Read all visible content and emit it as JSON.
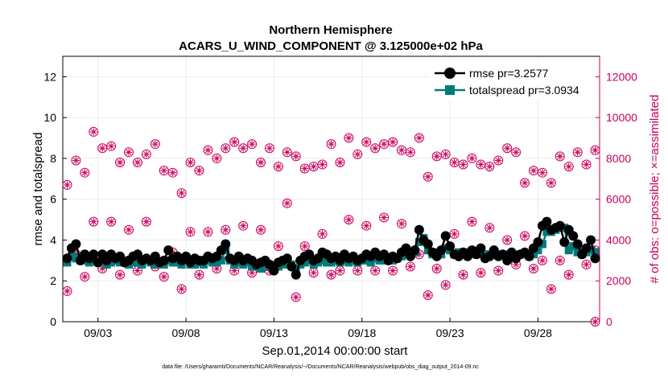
{
  "chart_data": {
    "type": "line",
    "title_line1": "Northern Hemisphere",
    "title_line2": "ACARS_U_WIND_COMPONENT @ 3.125000e+02 hPa",
    "xlabel": "Sep.01,2014 00:00:00 start",
    "ylabel_left": "rmse and totalspread",
    "ylabel_right": "# of obs: o=possible; ×=assimilated",
    "footnote": "data file: /Users/gharamti/Documents/NCAR/Reanalysis/~/Documents/NCAR/Reanalysis/webpub/obs_diag_output_2014-09.nc",
    "xlim": [
      1.0,
      31.5
    ],
    "ylim_left": [
      0,
      13
    ],
    "ylim_right": [
      0,
      13000
    ],
    "yticks_left": [
      0,
      2,
      4,
      6,
      8,
      10,
      12
    ],
    "yticks_right": [
      0,
      2000,
      4000,
      6000,
      8000,
      10000,
      12000
    ],
    "xticks": [
      {
        "day": 3,
        "label": "09/03"
      },
      {
        "day": 8,
        "label": "09/08"
      },
      {
        "day": 13,
        "label": "09/13"
      },
      {
        "day": 18,
        "label": "09/18"
      },
      {
        "day": 23,
        "label": "09/23"
      },
      {
        "day": 28,
        "label": "09/28"
      }
    ],
    "grid": true,
    "legend_position": "top-right",
    "series": [
      {
        "name": "rmse pr=3.2577",
        "color": "#000000",
        "marker": "circle",
        "x": [
          1.25,
          1.5,
          1.75,
          2.0,
          2.25,
          2.5,
          2.75,
          3.0,
          3.25,
          3.5,
          3.75,
          4.0,
          4.25,
          4.5,
          4.75,
          5.0,
          5.25,
          5.5,
          5.75,
          6.0,
          6.25,
          6.5,
          6.75,
          7.0,
          7.25,
          7.5,
          7.75,
          8.0,
          8.25,
          8.5,
          8.75,
          9.0,
          9.25,
          9.5,
          9.75,
          10.0,
          10.25,
          10.5,
          10.75,
          11.0,
          11.25,
          11.5,
          11.75,
          12.0,
          12.25,
          12.5,
          12.75,
          13.0,
          13.25,
          13.5,
          13.75,
          14.0,
          14.25,
          14.5,
          14.75,
          15.0,
          15.25,
          15.5,
          15.75,
          16.0,
          16.25,
          16.5,
          16.75,
          17.0,
          17.25,
          17.5,
          17.75,
          18.0,
          18.25,
          18.5,
          18.75,
          19.0,
          19.25,
          19.5,
          19.75,
          20.0,
          20.25,
          20.5,
          20.75,
          21.0,
          21.25,
          21.5,
          21.75,
          22.0,
          22.25,
          22.5,
          22.75,
          23.0,
          23.25,
          23.5,
          23.75,
          24.0,
          24.25,
          24.5,
          24.75,
          25.0,
          25.25,
          25.5,
          25.75,
          26.0,
          26.25,
          26.5,
          26.75,
          27.0,
          27.25,
          27.5,
          27.75,
          28.0,
          28.25,
          28.5,
          28.75,
          29.0,
          29.25,
          29.5,
          29.75,
          30.0,
          30.25,
          30.5,
          30.75,
          31.0,
          31.25
        ],
        "values": [
          3.1,
          3.6,
          3.8,
          3.0,
          3.3,
          3.1,
          3.3,
          2.9,
          3.3,
          3.0,
          3.3,
          3.1,
          3.2,
          2.9,
          3.0,
          3.2,
          3.3,
          3.0,
          3.1,
          3.0,
          3.2,
          2.9,
          3.0,
          3.5,
          3.1,
          3.2,
          3.0,
          3.2,
          2.9,
          3.1,
          3.0,
          3.0,
          3.2,
          3.1,
          3.2,
          3.5,
          3.8,
          3.1,
          3.0,
          3.2,
          3.0,
          3.1,
          3.0,
          2.8,
          2.9,
          3.0,
          2.8,
          2.5,
          2.9,
          3.0,
          3.1,
          2.7,
          2.3,
          3.0,
          3.2,
          3.3,
          3.0,
          3.1,
          3.4,
          3.3,
          3.1,
          3.2,
          3.0,
          3.3,
          3.1,
          3.2,
          3.0,
          3.1,
          3.3,
          3.2,
          3.4,
          3.2,
          3.3,
          3.0,
          3.2,
          3.1,
          3.4,
          3.6,
          3.2,
          3.5,
          4.5,
          4.0,
          3.8,
          3.4,
          3.2,
          3.5,
          4.2,
          3.7,
          3.3,
          3.2,
          3.4,
          3.2,
          3.5,
          3.3,
          3.6,
          3.1,
          3.2,
          3.5,
          3.2,
          3.3,
          3.0,
          3.4,
          3.1,
          3.3,
          3.4,
          3.2,
          3.6,
          3.9,
          4.7,
          4.9,
          4.5,
          4.6,
          4.7,
          3.9,
          4.5,
          4.2,
          3.8,
          3.3,
          3.6,
          4.0,
          3.1
        ],
        "dot_count": 121
      },
      {
        "name": "totalspread pr=3.0934",
        "color": "#007b7b",
        "marker": "square",
        "x": [
          1.25,
          1.5,
          1.75,
          2.0,
          2.25,
          2.5,
          2.75,
          3.0,
          3.25,
          3.5,
          3.75,
          4.0,
          4.25,
          4.5,
          4.75,
          5.0,
          5.25,
          5.5,
          5.75,
          6.0,
          6.25,
          6.5,
          6.75,
          7.0,
          7.25,
          7.5,
          7.75,
          8.0,
          8.25,
          8.5,
          8.75,
          9.0,
          9.25,
          9.5,
          9.75,
          10.0,
          10.25,
          10.5,
          10.75,
          11.0,
          11.25,
          11.5,
          11.75,
          12.0,
          12.25,
          12.5,
          12.75,
          13.0,
          13.25,
          13.5,
          13.75,
          14.0,
          14.25,
          14.5,
          14.75,
          15.0,
          15.25,
          15.5,
          15.75,
          16.0,
          16.25,
          16.5,
          16.75,
          17.0,
          17.25,
          17.5,
          17.75,
          18.0,
          18.25,
          18.5,
          18.75,
          19.0,
          19.25,
          19.5,
          19.75,
          20.0,
          20.25,
          20.5,
          20.75,
          21.0,
          21.25,
          21.5,
          21.75,
          22.0,
          22.25,
          22.5,
          22.75,
          23.0,
          23.25,
          23.5,
          23.75,
          24.0,
          24.25,
          24.5,
          24.75,
          25.0,
          25.25,
          25.5,
          25.75,
          26.0,
          26.25,
          26.5,
          26.75,
          27.0,
          27.25,
          27.5,
          27.75,
          28.0,
          28.25,
          28.5,
          28.75,
          29.0,
          29.25,
          29.5,
          29.75,
          30.0,
          30.25,
          30.5,
          30.75,
          31.0,
          31.25
        ],
        "values": [
          2.9,
          3.2,
          3.1,
          3.0,
          3.0,
          2.9,
          3.0,
          2.9,
          3.0,
          2.8,
          2.9,
          3.0,
          2.9,
          3.0,
          2.8,
          2.9,
          2.9,
          2.8,
          3.0,
          2.9,
          2.8,
          2.9,
          2.8,
          3.0,
          2.9,
          2.9,
          2.8,
          3.0,
          2.8,
          2.8,
          2.9,
          2.8,
          3.0,
          2.9,
          2.9,
          3.0,
          3.5,
          3.0,
          2.8,
          2.9,
          2.8,
          2.9,
          2.7,
          2.7,
          2.6,
          2.8,
          2.7,
          2.6,
          2.7,
          2.8,
          2.9,
          2.8,
          2.6,
          2.8,
          2.9,
          3.0,
          2.8,
          2.9,
          3.0,
          2.9,
          2.9,
          3.0,
          2.9,
          3.0,
          2.9,
          3.0,
          2.9,
          3.0,
          3.0,
          2.9,
          3.1,
          3.0,
          3.0,
          3.0,
          3.0,
          3.1,
          3.2,
          3.3,
          3.3,
          3.4,
          3.9,
          4.1,
          3.5,
          3.3,
          3.4,
          3.3,
          3.6,
          3.5,
          3.3,
          3.4,
          3.3,
          3.4,
          3.4,
          3.3,
          3.4,
          3.3,
          3.3,
          3.4,
          3.3,
          3.3,
          3.2,
          3.3,
          3.2,
          3.3,
          3.3,
          3.2,
          3.3,
          3.5,
          3.8,
          4.4,
          4.4,
          4.5,
          4.6,
          4.6,
          3.5,
          3.7,
          3.4,
          3.3,
          3.4,
          3.5,
          3.4
        ]
      }
    ],
    "obs_possible": {
      "x": [
        1.25,
        1.75,
        2.25,
        2.75,
        3.25,
        3.75,
        4.25,
        4.75,
        5.25,
        5.75,
        6.25,
        6.75,
        7.25,
        7.75,
        8.25,
        8.75,
        9.25,
        9.75,
        10.25,
        10.75,
        11.25,
        11.75,
        12.25,
        12.75,
        13.25,
        13.75,
        14.25,
        14.75,
        15.25,
        15.75,
        16.25,
        16.75,
        17.25,
        17.75,
        18.25,
        18.75,
        19.25,
        19.75,
        20.25,
        20.75,
        21.25,
        21.75,
        22.25,
        22.75,
        23.25,
        23.75,
        24.25,
        24.75,
        25.25,
        25.75,
        26.25,
        26.75,
        27.25,
        27.75,
        28.25,
        28.75,
        29.25,
        29.75,
        30.25,
        30.75,
        31.25
      ],
      "values_top": [
        6700,
        7900,
        7300,
        9300,
        8500,
        8600,
        7800,
        8300,
        7800,
        8200,
        8700,
        7400,
        7300,
        6300,
        7800,
        7400,
        8400,
        8000,
        8500,
        8800,
        8500,
        8700,
        7800,
        8500,
        7600,
        8300,
        8100,
        7500,
        7600,
        7700,
        8700,
        7800,
        9000,
        8200,
        8800,
        8500,
        8700,
        8800,
        8400,
        8300,
        9000,
        7100,
        8100,
        8200,
        7800,
        7700,
        8000,
        7700,
        7600,
        7900,
        8500,
        8300,
        6800,
        7400,
        7300,
        6800,
        8100,
        7600,
        8300,
        7700,
        8400
      ],
      "values_bottom": [
        1500,
        3300,
        2200,
        4900,
        2600,
        4900,
        2300,
        4500,
        2500,
        4900,
        2700,
        2200,
        3400,
        1600,
        4400,
        2300,
        4400,
        2600,
        4500,
        2500,
        4700,
        2400,
        4500,
        2500,
        3700,
        5800,
        1200,
        3700,
        2400,
        4300,
        2300,
        2500,
        5000,
        2500,
        4700,
        2500,
        5100,
        2500,
        4800,
        2700,
        3300,
        1300,
        2600,
        1800,
        4300,
        2300,
        4900,
        2400,
        4600,
        2500,
        4000,
        2800,
        4200,
        2600,
        3000,
        1600,
        3000,
        2300,
        3600,
        2800,
        3500
      ],
      "extra_x": [
        31.25
      ],
      "extra_values": [
        0
      ]
    }
  }
}
